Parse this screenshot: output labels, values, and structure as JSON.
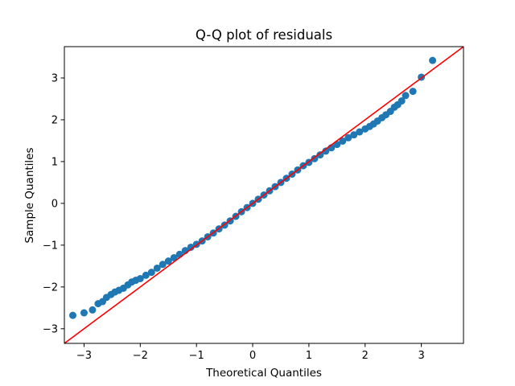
{
  "chart_data": {
    "type": "scatter",
    "title": "Q-Q plot of residuals",
    "xlabel": "Theoretical Quantiles",
    "ylabel": "Sample Quantiles",
    "xlim": [
      -3.35,
      3.75
    ],
    "ylim": [
      -3.35,
      3.75
    ],
    "xticks": [
      -3,
      -2,
      -1,
      0,
      1,
      2,
      3
    ],
    "yticks": [
      -3,
      -2,
      -1,
      0,
      1,
      2,
      3
    ],
    "xtick_labels": [
      "−3",
      "−2",
      "−1",
      "0",
      "1",
      "2",
      "3"
    ],
    "ytick_labels": [
      "−3",
      "−2",
      "−1",
      "0",
      "1",
      "2",
      "3"
    ],
    "grid": false,
    "colors": {
      "points": "#1f77b4",
      "reference_line": "#ff0000"
    },
    "reference_line": {
      "slope": 1,
      "intercept": 0
    },
    "series": [
      {
        "marker": "circle",
        "x": [
          -3.2,
          -3.0,
          -2.85,
          -2.75,
          -2.67,
          -2.6,
          -2.52,
          -2.45,
          -2.38,
          -2.3,
          -2.22,
          -2.15,
          -2.08,
          -2.0,
          -1.9,
          -1.8,
          -1.7,
          -1.6,
          -1.5,
          -1.4,
          -1.3,
          -1.2,
          -1.1,
          -1.0,
          -0.9,
          -0.8,
          -0.7,
          -0.6,
          -0.5,
          -0.4,
          -0.3,
          -0.2,
          -0.1,
          0.0,
          0.1,
          0.2,
          0.3,
          0.4,
          0.5,
          0.6,
          0.7,
          0.8,
          0.9,
          1.0,
          1.1,
          1.2,
          1.3,
          1.4,
          1.5,
          1.6,
          1.7,
          1.8,
          1.9,
          2.0,
          2.08,
          2.15,
          2.22,
          2.3,
          2.37,
          2.45,
          2.52,
          2.58,
          2.65,
          2.72,
          2.85,
          3.0,
          3.2
        ],
        "y": [
          -2.68,
          -2.62,
          -2.55,
          -2.4,
          -2.35,
          -2.25,
          -2.18,
          -2.12,
          -2.08,
          -2.03,
          -1.95,
          -1.88,
          -1.84,
          -1.8,
          -1.72,
          -1.65,
          -1.55,
          -1.46,
          -1.38,
          -1.3,
          -1.22,
          -1.13,
          -1.05,
          -0.98,
          -0.9,
          -0.8,
          -0.71,
          -0.61,
          -0.52,
          -0.42,
          -0.31,
          -0.2,
          -0.1,
          0.0,
          0.1,
          0.2,
          0.3,
          0.4,
          0.5,
          0.6,
          0.7,
          0.8,
          0.9,
          0.98,
          1.07,
          1.16,
          1.25,
          1.33,
          1.41,
          1.49,
          1.57,
          1.64,
          1.71,
          1.78,
          1.84,
          1.9,
          1.97,
          2.05,
          2.12,
          2.2,
          2.3,
          2.36,
          2.45,
          2.58,
          2.68,
          3.02,
          3.42
        ]
      }
    ]
  }
}
